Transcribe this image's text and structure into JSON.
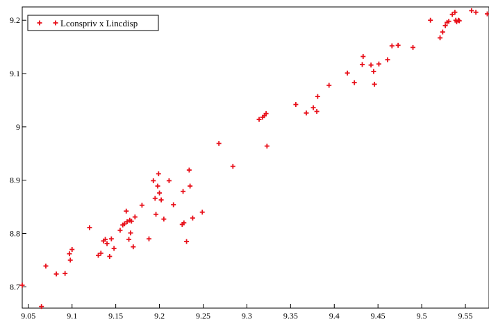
{
  "chart_data": {
    "type": "scatter",
    "title": "",
    "xlabel": "",
    "ylabel": "",
    "xlim": [
      9.043,
      9.577
    ],
    "ylim": [
      8.66,
      9.225
    ],
    "x_ticks": [
      "9.05",
      "9.1",
      "9.15",
      "9.2",
      "9.25",
      "9.3",
      "9.35",
      "9.4",
      "9.45",
      "9.5",
      "9.55"
    ],
    "y_ticks": [
      "8.7",
      "8.8",
      "8.9",
      "9",
      "9.1",
      "9.2"
    ],
    "grid": false,
    "legend_position": "top-left",
    "marker_color": "#e8101a",
    "series": [
      {
        "name": "Lconspriv x Lincdisp",
        "points": [
          [
            9.043,
            8.703
          ],
          [
            9.065,
            8.663
          ],
          [
            9.07,
            8.739
          ],
          [
            9.082,
            8.724
          ],
          [
            9.092,
            8.725
          ],
          [
            9.097,
            8.762
          ],
          [
            9.098,
            8.75
          ],
          [
            9.1,
            8.77
          ],
          [
            9.12,
            8.811
          ],
          [
            9.13,
            8.759
          ],
          [
            9.133,
            8.763
          ],
          [
            9.136,
            8.786
          ],
          [
            9.138,
            8.789
          ],
          [
            9.14,
            8.781
          ],
          [
            9.143,
            8.757
          ],
          [
            9.145,
            8.79
          ],
          [
            9.148,
            8.772
          ],
          [
            9.155,
            8.806
          ],
          [
            9.158,
            8.816
          ],
          [
            9.16,
            8.818
          ],
          [
            9.162,
            8.842
          ],
          [
            9.163,
            8.822
          ],
          [
            9.165,
            8.789
          ],
          [
            9.166,
            8.825
          ],
          [
            9.167,
            8.801
          ],
          [
            9.168,
            8.823
          ],
          [
            9.17,
            8.775
          ],
          [
            9.172,
            8.831
          ],
          [
            9.18,
            8.853
          ],
          [
            9.188,
            8.79
          ],
          [
            9.193,
            8.899
          ],
          [
            9.195,
            8.866
          ],
          [
            9.196,
            8.836
          ],
          [
            9.198,
            8.889
          ],
          [
            9.199,
            8.912
          ],
          [
            9.2,
            8.876
          ],
          [
            9.202,
            8.863
          ],
          [
            9.205,
            8.827
          ],
          [
            9.211,
            8.899
          ],
          [
            9.216,
            8.854
          ],
          [
            9.226,
            8.817
          ],
          [
            9.227,
            8.879
          ],
          [
            9.228,
            8.82
          ],
          [
            9.231,
            8.785
          ],
          [
            9.234,
            8.919
          ],
          [
            9.235,
            8.889
          ],
          [
            9.238,
            8.829
          ],
          [
            9.249,
            8.84
          ],
          [
            9.268,
            8.969
          ],
          [
            9.284,
            8.926
          ],
          [
            9.314,
            9.014
          ],
          [
            9.318,
            9.018
          ],
          [
            9.32,
            9.021
          ],
          [
            9.322,
            9.025
          ],
          [
            9.323,
            8.964
          ],
          [
            9.356,
            9.042
          ],
          [
            9.368,
            9.026
          ],
          [
            9.376,
            9.036
          ],
          [
            9.38,
            9.029
          ],
          [
            9.381,
            9.057
          ],
          [
            9.394,
            9.078
          ],
          [
            9.415,
            9.101
          ],
          [
            9.423,
            9.083
          ],
          [
            9.432,
            9.117
          ],
          [
            9.433,
            9.132
          ],
          [
            9.442,
            9.116
          ],
          [
            9.445,
            9.104
          ],
          [
            9.446,
            9.08
          ],
          [
            9.451,
            9.118
          ],
          [
            9.461,
            9.126
          ],
          [
            9.466,
            9.152
          ],
          [
            9.473,
            9.153
          ],
          [
            9.49,
            9.149
          ],
          [
            9.51,
            9.2
          ],
          [
            9.521,
            9.167
          ],
          [
            9.524,
            9.178
          ],
          [
            9.527,
            9.19
          ],
          [
            9.529,
            9.196
          ],
          [
            9.531,
            9.198
          ],
          [
            9.535,
            9.211
          ],
          [
            9.538,
            9.215
          ],
          [
            9.539,
            9.2
          ],
          [
            9.54,
            9.197
          ],
          [
            9.542,
            9.2
          ],
          [
            9.543,
            9.199
          ],
          [
            9.557,
            9.218
          ],
          [
            9.562,
            9.215
          ],
          [
            9.575,
            9.212
          ]
        ]
      }
    ]
  }
}
